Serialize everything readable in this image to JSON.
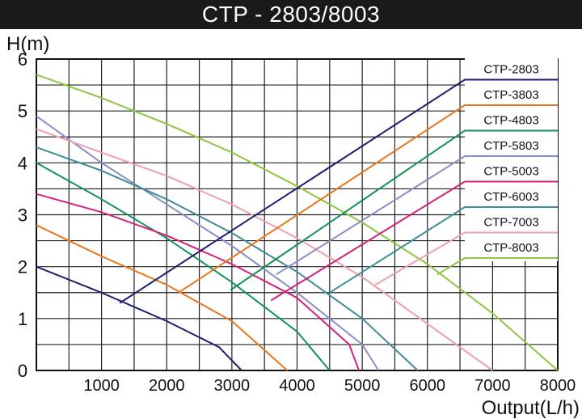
{
  "chart_data": {
    "type": "line",
    "title": "CTP - 2803/8003",
    "xlabel": "Output(L/h)",
    "ylabel": "H(m)",
    "xlim": [
      0,
      8000
    ],
    "ylim": [
      0,
      6
    ],
    "x_ticks": [
      "1000",
      "2000",
      "3000",
      "4000",
      "5000",
      "6000",
      "7000",
      "8000"
    ],
    "y_ticks": [
      "0",
      "1",
      "2",
      "3",
      "4",
      "5",
      "6"
    ],
    "grid": true,
    "legend_position": "top-right",
    "series": [
      {
        "name": "CTP-2803",
        "color": "#1f1f6e",
        "points": [
          [
            0,
            2.0
          ],
          [
            1000,
            1.5
          ],
          [
            2000,
            0.95
          ],
          [
            2800,
            0.45
          ],
          [
            3150,
            0
          ]
        ]
      },
      {
        "name": "CTP-3803",
        "color": "#e8761e",
        "points": [
          [
            0,
            2.8
          ],
          [
            1000,
            2.2
          ],
          [
            2000,
            1.65
          ],
          [
            3000,
            0.95
          ],
          [
            3850,
            0
          ]
        ]
      },
      {
        "name": "CTP-4803",
        "color": "#12935a",
        "points": [
          [
            0,
            4.0
          ],
          [
            1000,
            3.3
          ],
          [
            2000,
            2.55
          ],
          [
            3000,
            1.7
          ],
          [
            4000,
            0.75
          ],
          [
            4500,
            0
          ]
        ]
      },
      {
        "name": "CTP-5803",
        "color": "#8a8ec8",
        "points": [
          [
            0,
            4.9
          ],
          [
            1000,
            4.0
          ],
          [
            2000,
            3.2
          ],
          [
            3000,
            2.4
          ],
          [
            4000,
            1.5
          ],
          [
            5000,
            0.5
          ],
          [
            5250,
            0
          ]
        ]
      },
      {
        "name": "CTP-5003",
        "color": "#d6217a",
        "points": [
          [
            0,
            3.4
          ],
          [
            1000,
            3.05
          ],
          [
            2000,
            2.6
          ],
          [
            3000,
            2.05
          ],
          [
            4000,
            1.4
          ],
          [
            4800,
            0.5
          ],
          [
            4950,
            0
          ]
        ]
      },
      {
        "name": "CTP-6003",
        "color": "#3f8d97",
        "points": [
          [
            0,
            4.3
          ],
          [
            1000,
            3.85
          ],
          [
            2000,
            3.3
          ],
          [
            3000,
            2.65
          ],
          [
            4000,
            1.9
          ],
          [
            5000,
            1.0
          ],
          [
            5850,
            0
          ]
        ]
      },
      {
        "name": "CTP-7003",
        "color": "#eda1ad",
        "points": [
          [
            0,
            4.65
          ],
          [
            1000,
            4.2
          ],
          [
            2000,
            3.75
          ],
          [
            3000,
            3.2
          ],
          [
            4000,
            2.55
          ],
          [
            5000,
            1.8
          ],
          [
            6000,
            0.9
          ],
          [
            7000,
            0
          ]
        ]
      },
      {
        "name": "CTP-8003",
        "color": "#8dc63f",
        "points": [
          [
            0,
            5.7
          ],
          [
            1000,
            5.25
          ],
          [
            2000,
            4.75
          ],
          [
            3000,
            4.2
          ],
          [
            4000,
            3.55
          ],
          [
            5000,
            2.85
          ],
          [
            6000,
            2.05
          ],
          [
            7000,
            1.1
          ],
          [
            8000,
            0
          ]
        ]
      }
    ]
  }
}
